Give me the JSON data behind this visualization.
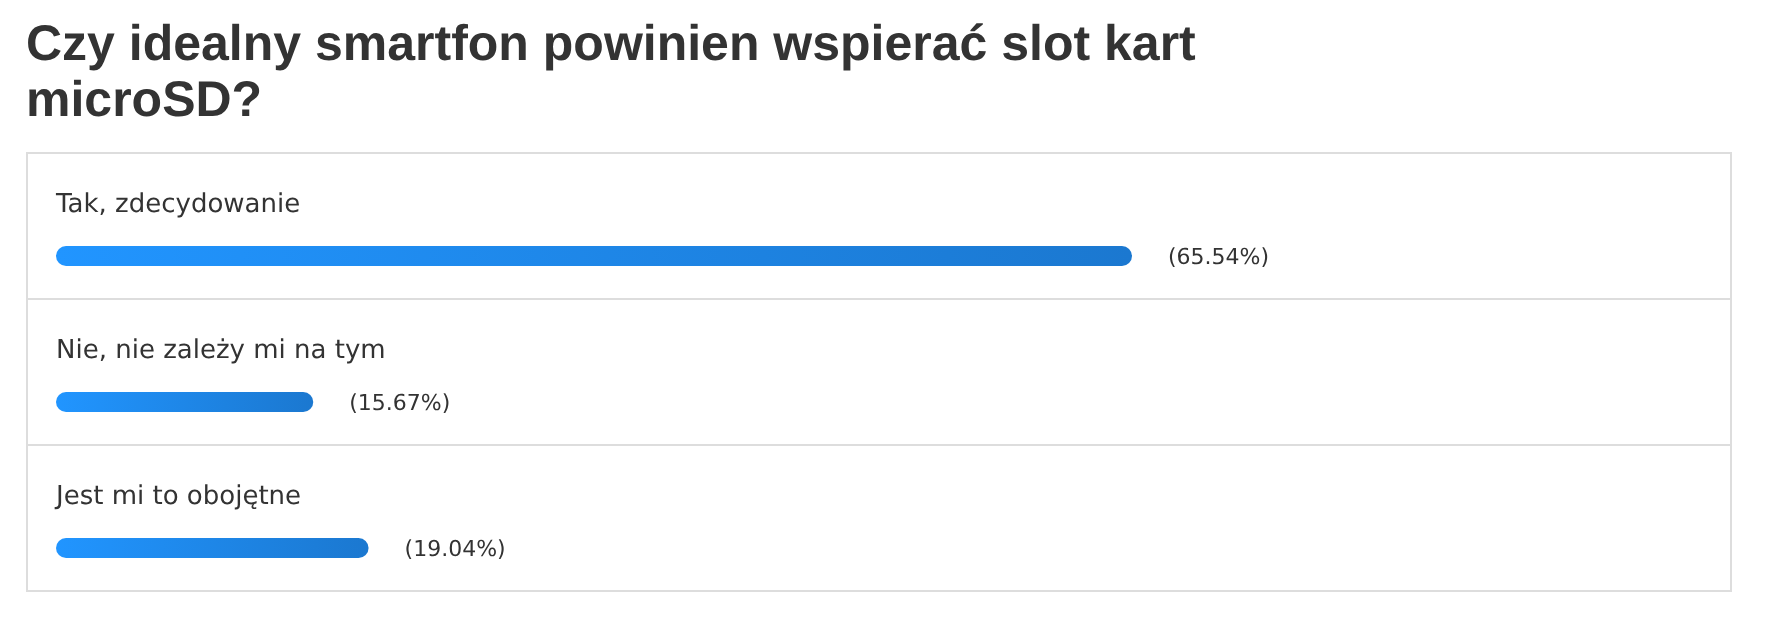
{
  "chart_data": {
    "type": "bar",
    "orientation": "horizontal",
    "title": "Czy idealny smartfon powinien wspierać slot kart microSD?",
    "categories": [
      "Tak, zdecydowanie",
      "Nie, nie zależy mi na tym",
      "Jest mi to obojętne"
    ],
    "values": [
      65.54,
      15.67,
      19.04
    ],
    "value_labels": [
      "(65.54%)",
      "(15.67%)",
      "(19.04%)"
    ],
    "color": "#1b78d0"
  }
}
